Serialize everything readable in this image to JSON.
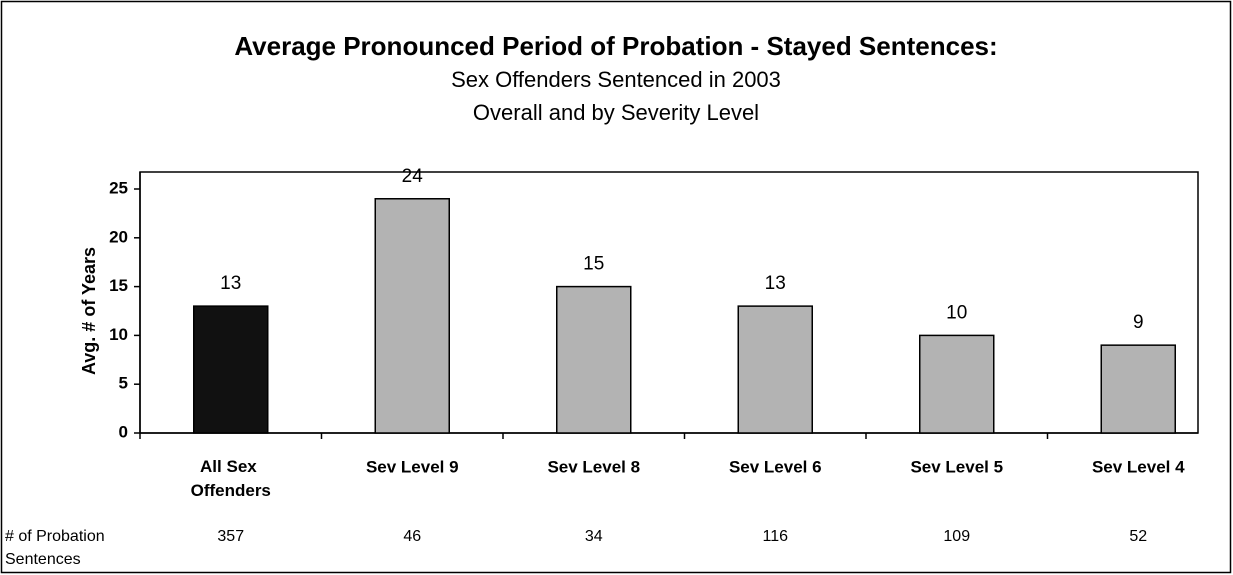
{
  "chart_data": {
    "type": "bar",
    "title": "Average Pronounced Period of Probation - Stayed Sentences:",
    "subtitle": [
      "Sex Offenders Sentenced in 2003",
      "Overall and by Severity Level"
    ],
    "y_label": "Avg. # of Years",
    "categories": [
      "All Sex Offenders",
      "Sev Level 9",
      "Sev Level 8",
      "Sev Level 6",
      "Sev Level 5",
      "Sev Level 4"
    ],
    "values": [
      13,
      24,
      15,
      13,
      10,
      9
    ],
    "colors": [
      "#111111",
      "#b3b3b3",
      "#b3b3b3",
      "#b3b3b3",
      "#b3b3b3",
      "#b3b3b3"
    ],
    "ylim": [
      0,
      25
    ],
    "yticks": [
      0,
      5,
      10,
      15,
      20,
      25
    ],
    "counts_label": "# of Probation Sentences",
    "counts": [
      357,
      46,
      34,
      116,
      109,
      52
    ]
  }
}
